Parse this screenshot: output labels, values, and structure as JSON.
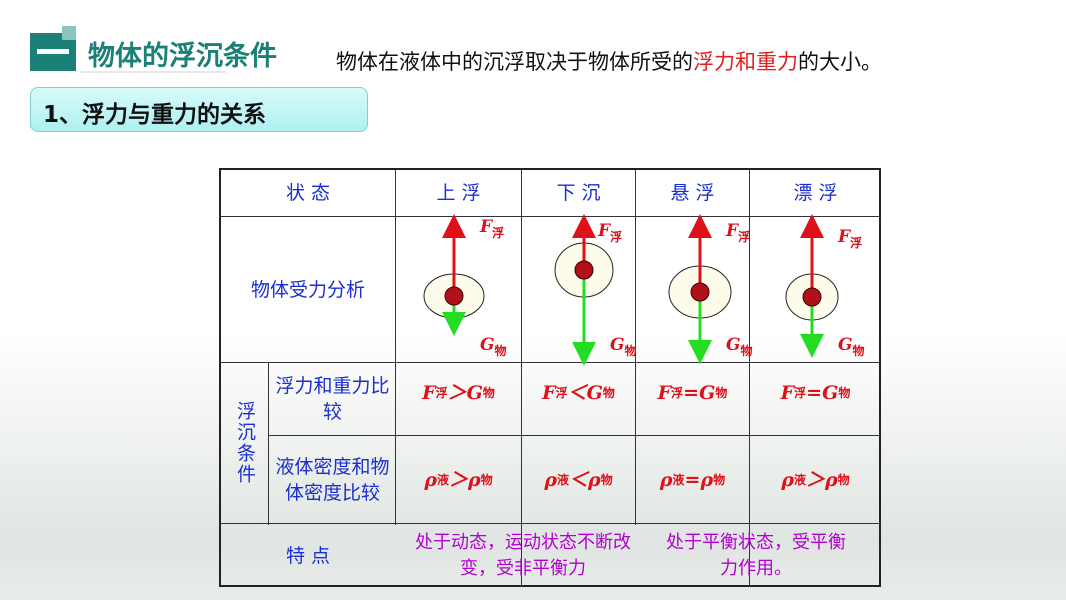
{
  "header": {
    "badge_char": "一",
    "title": "物体的浮沉条件",
    "intro_pre": "物体在液体中的沉浮取决于物体所受的",
    "intro_highlight": "浮力和重力",
    "intro_post": "的大小。"
  },
  "section": {
    "label": "1、浮力与重力的关系"
  },
  "table": {
    "headers": [
      "状 态",
      "上 浮",
      "下 沉",
      "悬 浮",
      "漂 浮"
    ],
    "row_force_label": "物体受力分析",
    "force_labels": {
      "F": "F",
      "F_sub": "浮",
      "G": "G",
      "G_sub": "物"
    },
    "group_label": "浮沉条件",
    "row_compare_label": "浮力和重力比较",
    "row_density_label": "液体密度和物体密度比较",
    "compare": [
      {
        "lhs": "F",
        "lhs_sub": "浮",
        "op": "＞",
        "rhs": "G",
        "rhs_sub": "物"
      },
      {
        "lhs": "F",
        "lhs_sub": "浮",
        "op": "＜",
        "rhs": "G",
        "rhs_sub": "物"
      },
      {
        "lhs": "F",
        "lhs_sub": "浮",
        "op": " =",
        "rhs": "G",
        "rhs_sub": "物"
      },
      {
        "lhs": "F",
        "lhs_sub": "浮",
        "op": " =",
        "rhs": "G",
        "rhs_sub": "物"
      }
    ],
    "density": [
      {
        "lhs": "ρ",
        "lhs_sub": "液",
        "op": "＞",
        "rhs": "ρ",
        "rhs_sub": "物"
      },
      {
        "lhs": "ρ",
        "lhs_sub": "液",
        "op": "＜",
        "rhs": "ρ",
        "rhs_sub": "物"
      },
      {
        "lhs": "ρ",
        "lhs_sub": "液",
        "op": "=",
        "rhs": "ρ",
        "rhs_sub": "物"
      },
      {
        "lhs": "ρ",
        "lhs_sub": "液",
        "op": "＞",
        "rhs": "ρ",
        "rhs_sub": "物"
      }
    ],
    "row_feature_label": "特 点",
    "feature_dynamic": "处于动态，运动状态不断改变，受非平衡力",
    "feature_static": "处于平衡状态，受平衡力作用。"
  },
  "colors": {
    "accent": "#1b8077",
    "highlight": "#e0201c",
    "table_text": "#1a2fd0",
    "feature_text": "#b400d0",
    "buoyancy_arrow": "#e0101a",
    "gravity_arrow": "#22dd22"
  }
}
